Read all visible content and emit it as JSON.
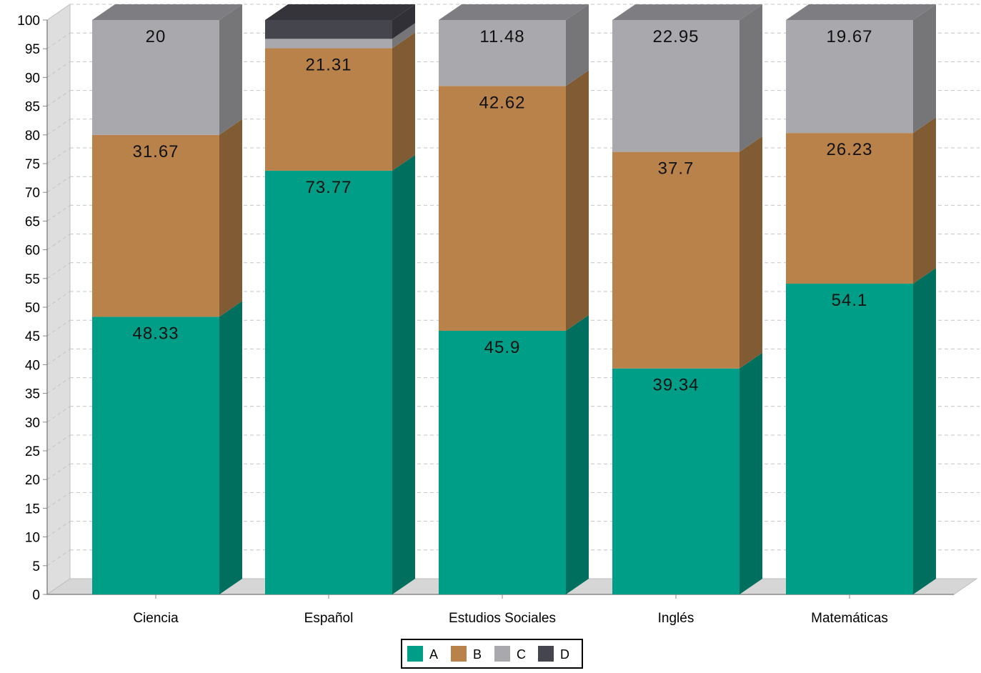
{
  "chart_data": {
    "type": "bar",
    "stacked": true,
    "style": "3d",
    "categories": [
      "Ciencia",
      "Español",
      "Estudios Sociales",
      "Inglés",
      "Matemáticas"
    ],
    "series": [
      {
        "name": "A",
        "color": "#009E86",
        "values": [
          48.33,
          73.77,
          45.9,
          39.34,
          54.1
        ],
        "labels": [
          "48.33",
          "73.77",
          "45.9",
          "39.34",
          "54.1"
        ]
      },
      {
        "name": "B",
        "color": "#B8824A",
        "values": [
          31.67,
          21.31,
          42.62,
          37.7,
          26.23
        ],
        "labels": [
          "31.67",
          "21.31",
          "42.62",
          "37.7",
          "26.23"
        ]
      },
      {
        "name": "C",
        "color": "#A8A8AD",
        "values": [
          20,
          1.64,
          11.48,
          22.95,
          19.67
        ],
        "labels": [
          "20",
          "",
          "11.48",
          "22.95",
          "19.67"
        ]
      },
      {
        "name": "D",
        "color": "#45454D",
        "values": [
          0,
          3.28,
          0,
          0,
          0
        ],
        "labels": [
          "",
          "",
          "",
          "",
          ""
        ]
      }
    ],
    "yticks": [
      "0",
      "5",
      "10",
      "15",
      "20",
      "25",
      "30",
      "35",
      "40",
      "45",
      "50",
      "55",
      "60",
      "65",
      "70",
      "75",
      "80",
      "85",
      "90",
      "95",
      "100"
    ],
    "ylim": [
      0,
      100
    ],
    "ystep": 5,
    "grid": true,
    "legend_position": "bottom-center",
    "title": "",
    "xlabel": "",
    "ylabel": ""
  }
}
